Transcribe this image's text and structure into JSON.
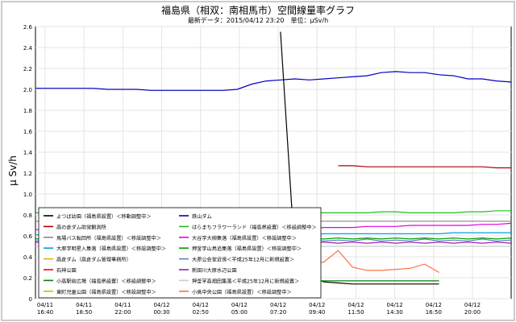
{
  "chart_data": {
    "type": "line",
    "title": "福島県（相双：南相馬市）空間線量率グラフ",
    "subtitle": "最新データ：2015/04/12 23:20　単位：μSv/h",
    "ylabel": "μ Sv/h",
    "xlabel": "",
    "ylim": [
      0,
      2.6
    ],
    "yticks": [
      "0",
      "0.2",
      "0.4",
      "0.6",
      "0.8",
      "1.0",
      "1.2",
      "1.4",
      "1.6",
      "1.8",
      "2.0",
      "2.2",
      "2.4",
      "2.6"
    ],
    "x_ticks": [
      {
        "date": "04/11",
        "time": "16:40"
      },
      {
        "date": "04/11",
        "time": "18:50"
      },
      {
        "date": "04/11",
        "time": "22:00"
      },
      {
        "date": "04/12",
        "time": "00:30"
      },
      {
        "date": "04/12",
        "time": "02:50"
      },
      {
        "date": "04/12",
        "time": "05:00"
      },
      {
        "date": "04/12",
        "time": "07:20"
      },
      {
        "date": "04/12",
        "time": "09:40"
      },
      {
        "date": "04/12",
        "time": "11:50"
      },
      {
        "date": "04/12",
        "time": "14:30"
      },
      {
        "date": "04/12",
        "time": "16:50"
      },
      {
        "date": "04/12",
        "time": "20:00"
      }
    ],
    "grid": true,
    "legend_position": "bottom-left",
    "legend": [
      {
        "name": "よつば幼園（福島県設置）＜移動調整中＞",
        "color": "#000000"
      },
      {
        "name": "鉄山ダム",
        "color": "#0000c0"
      },
      {
        "name": "高の倉ダム助常観測所",
        "color": "#b00000"
      },
      {
        "name": "はらまちフラワーランド（福島県設置）＜移設調整中＞",
        "color": "#20c020"
      },
      {
        "name": "馬場バス転回所（福島県設置）＜移設調整中＞",
        "color": "#888888"
      },
      {
        "name": "大谷字大柳集落（福島県設置）＜移設調整中＞",
        "color": "#e000e0"
      },
      {
        "name": "大原字明星入集落（福島県設置）＜移設調整中＞",
        "color": "#00a0e0"
      },
      {
        "name": "押釜字山鳥追集落（福島県設置）＜移設調整中＞",
        "color": "#00a000"
      },
      {
        "name": "高倉ダム（高倉ダム管理事務所）",
        "color": "#e0b000"
      },
      {
        "name": "大原公会堂近傍＜平成25年12月に新規設置＞",
        "color": "#6080c0"
      },
      {
        "name": "石神公園",
        "color": "#ff0000"
      },
      {
        "name": "新田川大原水辺公園",
        "color": "#9020b0"
      },
      {
        "name": "小高駅前広場（福島県設置）＜移設調整中＞",
        "color": "#008000"
      },
      {
        "name": "押釜字高畑田集落＜平成25年12月に新規設置＞",
        "color": "#cccccc"
      },
      {
        "name": "東町児童公園（福島県設置）＜移設調整中＞",
        "color": "#c0c000"
      },
      {
        "name": "小高中央公園（福島県設置）＜移設調整中＞",
        "color": "#ff7040"
      }
    ],
    "series": [
      {
        "name": "鉄山ダム",
        "color": "#0000c0",
        "start": 0,
        "values": [
          2.01,
          2.01,
          2.01,
          2.01,
          2.01,
          2.0,
          2.0,
          2.0,
          1.99,
          1.99,
          1.99,
          1.99,
          1.99,
          1.99,
          2.0,
          2.05,
          2.08,
          2.09,
          2.1,
          2.09,
          2.1,
          2.11,
          2.12,
          2.13,
          2.16,
          2.17,
          2.16,
          2.16,
          2.14,
          2.13,
          2.1,
          2.1,
          2.08,
          2.07
        ]
      },
      {
        "name": "よつば幼園（福島県設置）＜移動調整中＞",
        "color": "#000000",
        "start": 17,
        "values": [
          2.55,
          0.4,
          0.22,
          0.16,
          0.15,
          0.14,
          0.14,
          0.14,
          0.14,
          0.14,
          0.14,
          0.14
        ]
      },
      {
        "name": "高の倉ダム助常観測所",
        "color": "#b00000",
        "start": 21,
        "values": [
          1.27,
          1.27,
          1.26,
          1.26,
          1.26,
          1.26,
          1.26,
          1.26,
          1.26,
          1.26,
          1.26,
          1.25,
          1.25
        ]
      },
      {
        "name": "はらまちフラワーランド（福島県設置）＜移設調整中＞",
        "color": "#20c020",
        "start": 0,
        "values": [
          0.82,
          0.82,
          0.82,
          0.82,
          0.82,
          0.82,
          0.82,
          0.82,
          0.82,
          0.82,
          0.82,
          0.82,
          0.82,
          0.82,
          0.82,
          0.82,
          0.82,
          0.82,
          0.82,
          0.82,
          0.82,
          0.82,
          0.82,
          0.82,
          0.83,
          0.83,
          0.82,
          0.82,
          0.82,
          0.82,
          0.83,
          0.83,
          0.84,
          0.84
        ]
      },
      {
        "name": "馬場バス転回所（福島県設置）＜移設調整中＞",
        "color": "#888888",
        "start": 0,
        "values": [
          0.74,
          0.74,
          0.74,
          0.74,
          0.74,
          0.74,
          0.74,
          0.74,
          0.74,
          0.74,
          0.74,
          0.74,
          0.74,
          0.74,
          0.74,
          0.74,
          0.74,
          0.74,
          0.74,
          0.74,
          0.74,
          0.74,
          0.74,
          0.74,
          0.74,
          0.74,
          0.74,
          0.74,
          0.74,
          0.74,
          0.74,
          0.74,
          0.74,
          0.74
        ]
      },
      {
        "name": "大谷字大柳集落（福島県設置）＜移設調整中＞",
        "color": "#e000e0",
        "start": 0,
        "values": [
          0.66,
          0.66,
          0.66,
          0.66,
          0.66,
          0.66,
          0.66,
          0.66,
          0.66,
          0.66,
          0.66,
          0.66,
          0.66,
          0.66,
          0.66,
          0.66,
          0.66,
          0.66,
          0.66,
          0.67,
          0.68,
          0.68,
          0.68,
          0.69,
          0.69,
          0.69,
          0.7,
          0.7,
          0.7,
          0.7,
          0.7,
          0.71,
          0.71,
          0.72
        ]
      },
      {
        "name": "大原字明星入集落（福島県設置）＜移設調整中＞",
        "color": "#00a0e0",
        "start": 0,
        "values": [
          0.61,
          0.61,
          0.61,
          0.61,
          0.61,
          0.61,
          0.61,
          0.61,
          0.61,
          0.61,
          0.61,
          0.61,
          0.61,
          0.61,
          0.61,
          0.61,
          0.61,
          0.61,
          0.61,
          0.61,
          0.62,
          0.62,
          0.62,
          0.62,
          0.62,
          0.62,
          0.62,
          0.62,
          0.62,
          0.63,
          0.63,
          0.63,
          0.63,
          0.63
        ]
      },
      {
        "name": "押釜字山鳥追集落（福島県設置）＜移設調整中＞",
        "color": "#00a000",
        "start": 0,
        "values": [
          0.57,
          0.58,
          0.57,
          0.58,
          0.57,
          0.58,
          0.57,
          0.58,
          0.57,
          0.58,
          0.57,
          0.58,
          0.57,
          0.58,
          0.57,
          0.58,
          0.57,
          0.58,
          0.57,
          0.58,
          0.57,
          0.58,
          0.57,
          0.58,
          0.57,
          0.58,
          0.57,
          0.58,
          0.57,
          0.58,
          0.57,
          0.58,
          0.57,
          0.58
        ]
      },
      {
        "name": "大原公会堂近傍＜平成25年12月に新規設置＞",
        "color": "#6080c0",
        "start": 0,
        "values": [
          0.55,
          0.56,
          0.55,
          0.57,
          0.55,
          0.56,
          0.55,
          0.57,
          0.55,
          0.56,
          0.55,
          0.57,
          0.55,
          0.56,
          0.55,
          0.57,
          0.55,
          0.56,
          0.55,
          0.57,
          0.55,
          0.56,
          0.55,
          0.57,
          0.55,
          0.56,
          0.55,
          0.57,
          0.55,
          0.56,
          0.55,
          0.57,
          0.55,
          0.56
        ]
      },
      {
        "name": "新田川大原水辺公園",
        "color": "#9020b0",
        "start": 0,
        "values": [
          0.54,
          0.53,
          0.54,
          0.53,
          0.54,
          0.53,
          0.54,
          0.53,
          0.54,
          0.53,
          0.54,
          0.53,
          0.54,
          0.53,
          0.54,
          0.53,
          0.54,
          0.53,
          0.54,
          0.53,
          0.54,
          0.53,
          0.54,
          0.53,
          0.54,
          0.53,
          0.54,
          0.53,
          0.54,
          0.53,
          0.54,
          0.53,
          0.54,
          0.53
        ]
      },
      {
        "name": "押釜字高畑田集落＜平成25年12月に新規設置＞",
        "color": "#cccccc",
        "start": 0,
        "values": [
          0.5,
          0.5,
          0.5,
          0.5,
          0.5,
          0.5,
          0.5,
          0.5,
          0.5,
          0.5,
          0.5,
          0.5,
          0.5,
          0.5,
          0.5,
          0.5,
          0.5,
          0.5,
          0.5,
          0.5,
          0.5,
          0.5,
          0.5,
          0.5,
          0.5,
          0.5,
          0.5,
          0.5,
          0.5,
          0.5,
          0.5,
          0.5,
          0.5,
          0.5
        ]
      },
      {
        "name": "小高中央公園（福島県設置）＜移設調整中＞",
        "color": "#ff7040",
        "start": 17,
        "values": [
          0.28,
          0.3,
          0.34,
          0.35,
          0.46,
          0.3,
          0.27,
          0.27,
          0.28,
          0.29,
          0.33,
          0.25
        ]
      },
      {
        "name": "小高駅前広場（福島県設置）＜移設調整中＞",
        "color": "#008000",
        "start": 17,
        "values": [
          0.18,
          0.17,
          0.17,
          0.17,
          0.17,
          0.17,
          0.17,
          0.17,
          0.17,
          0.17,
          0.17,
          0.17
        ]
      }
    ]
  }
}
